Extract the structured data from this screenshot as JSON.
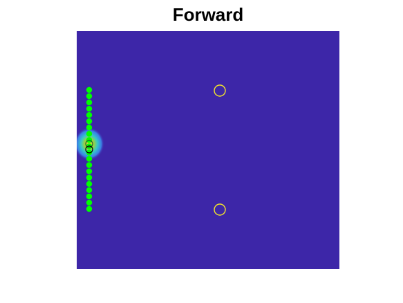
{
  "title": "Forward",
  "colors": {
    "background_field": "#3d26a8",
    "sensor_points": "#00ff00",
    "target_rings": "#f5e62a",
    "source_rings": "#000000",
    "hotspot_outer": "#38a2f0",
    "hotspot_mid": "#3cd4c4",
    "hotspot_inner": "#e6cf2e"
  },
  "sensor_array": {
    "count": 20
  },
  "target_markers": [
    "upper-target",
    "lower-target"
  ],
  "source_markers": [
    "upper-source",
    "lower-source"
  ]
}
